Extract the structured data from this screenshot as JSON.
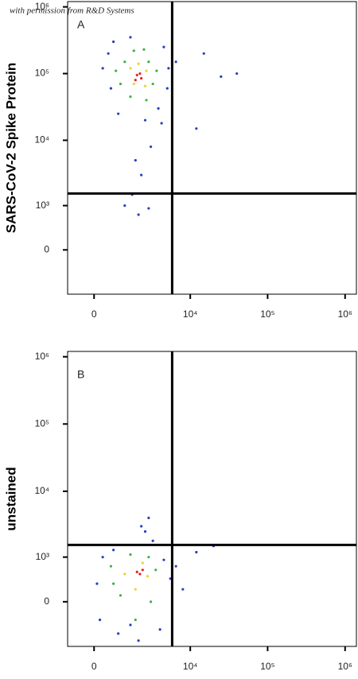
{
  "watermark": "with permission from R&D Systems",
  "chart_data": [
    {
      "type": "scatter",
      "panel_label": "A",
      "ylabel": "SARS-CoV-2 Spike Protein",
      "xscale": "biexponential",
      "yscale": "biexponential",
      "xlim": [
        -1000,
        1400000
      ],
      "ylim": [
        -1000,
        1200000
      ],
      "xticks": [
        0,
        {
          "value": 10000,
          "label": "10⁴"
        },
        {
          "value": 100000,
          "label": "10⁵"
        },
        {
          "value": 1000000,
          "label": "10⁶"
        }
      ],
      "yticks": [
        0,
        {
          "value": 1000,
          "label": "10³"
        },
        {
          "value": 10000,
          "label": "10⁴"
        },
        {
          "value": 100000,
          "label": "10⁵"
        },
        {
          "value": 1000000,
          "label": "10⁶"
        }
      ],
      "gates": {
        "x": 5800,
        "y": 1560
      },
      "series": [
        {
          "color": "#2a3fbf",
          "x": [
            500,
            700,
            4500,
            5200,
            900,
            3800,
            600,
            5000,
            1500,
            2500,
            1800,
            2200,
            1600,
            2800,
            1200,
            2000,
            3000,
            6500,
            25000,
            40000,
            15000,
            12000,
            300,
            4200
          ],
          "y": [
            200000,
            300000,
            250000,
            120000,
            25000,
            30000,
            60000,
            60000,
            350000,
            20000,
            5000,
            3000,
            1500,
            900,
            1000,
            700,
            8000,
            150000,
            90000,
            100000,
            200000,
            15000,
            120000,
            18000
          ]
        },
        {
          "color": "#3cb04a",
          "x": [
            1200,
            2800,
            1000,
            3200,
            1500,
            2600,
            1700,
            2400,
            3600,
            800
          ],
          "y": [
            150000,
            150000,
            70000,
            70000,
            45000,
            40000,
            220000,
            230000,
            110000,
            110000
          ]
        },
        {
          "color": "#e8d62a",
          "x": [
            1500,
            2600,
            1700,
            2500,
            2000
          ],
          "y": [
            120000,
            110000,
            70000,
            65000,
            140000
          ]
        },
        {
          "color": "#e0251c",
          "x": [
            1900,
            2200,
            1800,
            2100
          ],
          "y": [
            95000,
            85000,
            80000,
            100000
          ]
        }
      ]
    },
    {
      "type": "scatter",
      "panel_label": "B",
      "ylabel": "unstained",
      "xscale": "biexponential",
      "yscale": "biexponential",
      "xlim": [
        -1000,
        1400000
      ],
      "ylim": [
        -1000,
        1200000
      ],
      "xticks": [
        0,
        {
          "value": 10000,
          "label": "10⁴"
        },
        {
          "value": 100000,
          "label": "10⁵"
        },
        {
          "value": 1000000,
          "label": "10⁶"
        }
      ],
      "yticks": [
        0,
        {
          "value": 1000,
          "label": "10³"
        },
        {
          "value": 10000,
          "label": "10⁴"
        },
        {
          "value": 100000,
          "label": "10⁵"
        },
        {
          "value": 1000000,
          "label": "10⁶"
        }
      ],
      "gates": {
        "x": 5800,
        "y": 1560
      },
      "series": [
        {
          "color": "#2a3fbf",
          "x": [
            300,
            700,
            4500,
            5500,
            200,
            900,
            4000,
            2000,
            2500,
            2800,
            2200,
            3200,
            6500,
            12000,
            20000,
            8000,
            100,
            1500
          ],
          "y": [
            1000,
            1300,
            900,
            400,
            -300,
            -600,
            -500,
            -800,
            2500,
            4000,
            3000,
            1800,
            700,
            1200,
            1500,
            200,
            300,
            -400
          ]
        },
        {
          "color": "#3cb04a",
          "x": [
            600,
            3500,
            1000,
            3000,
            1800,
            1500,
            2800,
            700
          ],
          "y": [
            700,
            600,
            100,
            0,
            -300,
            1100,
            1000,
            300
          ]
        },
        {
          "color": "#e8d62a",
          "x": [
            1200,
            2700,
            1800,
            2300
          ],
          "y": [
            500,
            450,
            200,
            800
          ]
        },
        {
          "color": "#e0251c",
          "x": [
            1900,
            2300,
            2100
          ],
          "y": [
            550,
            600,
            500
          ]
        }
      ]
    }
  ]
}
